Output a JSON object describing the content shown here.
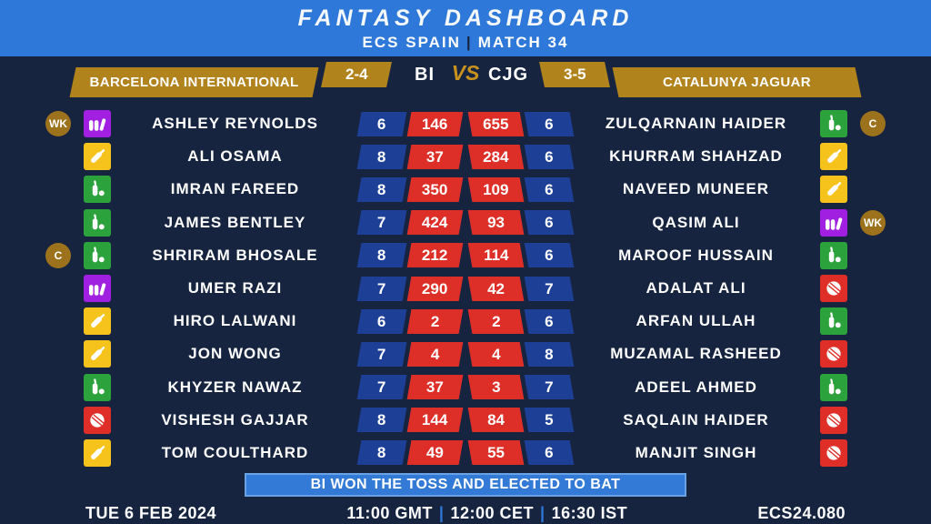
{
  "header": {
    "title": "FANTASY DASHBOARD",
    "subtitle_left": "ECS SPAIN",
    "subtitle_sep": "|",
    "subtitle_right": "MATCH 34"
  },
  "match": {
    "team_left_name": "BARCELONA INTERNATIONAL",
    "team_left_code": "BI",
    "team_left_record": "2-4",
    "vs_label": "VS",
    "team_right_name": "CATALUNYA JAGUAR",
    "team_right_code": "CJG",
    "team_right_record": "3-5"
  },
  "icons": {
    "batsman": "bat-icon",
    "all_rounder": "bat-and-ball-icon",
    "wicketkeeper": "wk-gloves-icon",
    "bowler": "cricket-ball-icon"
  },
  "players_left": [
    {
      "name": "ASHLEY REYNOLDS",
      "role": "wicketkeeper",
      "badge": "WK",
      "matches": "6",
      "points": "146"
    },
    {
      "name": "ALI OSAMA",
      "role": "batsman",
      "badge": "",
      "matches": "8",
      "points": "37"
    },
    {
      "name": "IMRAN FAREED",
      "role": "all_rounder",
      "badge": "",
      "matches": "8",
      "points": "350"
    },
    {
      "name": "JAMES BENTLEY",
      "role": "all_rounder",
      "badge": "",
      "matches": "7",
      "points": "424"
    },
    {
      "name": "SHRIRAM BHOSALE",
      "role": "all_rounder",
      "badge": "C",
      "matches": "8",
      "points": "212"
    },
    {
      "name": "UMER RAZI",
      "role": "wicketkeeper",
      "badge": "",
      "matches": "7",
      "points": "290"
    },
    {
      "name": "HIRO LALWANI",
      "role": "batsman",
      "badge": "",
      "matches": "6",
      "points": "2"
    },
    {
      "name": "JON WONG",
      "role": "batsman",
      "badge": "",
      "matches": "7",
      "points": "4"
    },
    {
      "name": "KHYZER NAWAZ",
      "role": "all_rounder",
      "badge": "",
      "matches": "7",
      "points": "37"
    },
    {
      "name": "VISHESH GAJJAR",
      "role": "bowler",
      "badge": "",
      "matches": "8",
      "points": "144"
    },
    {
      "name": "TOM COULTHARD",
      "role": "batsman",
      "badge": "",
      "matches": "8",
      "points": "49"
    }
  ],
  "players_right": [
    {
      "name": "ZULQARNAIN HAIDER",
      "role": "all_rounder",
      "badge": "C",
      "matches": "6",
      "points": "655"
    },
    {
      "name": "KHURRAM SHAHZAD",
      "role": "batsman",
      "badge": "",
      "matches": "6",
      "points": "284"
    },
    {
      "name": "NAVEED MUNEER",
      "role": "batsman",
      "badge": "",
      "matches": "6",
      "points": "109"
    },
    {
      "name": "QASIM ALI",
      "role": "wicketkeeper",
      "badge": "WK",
      "matches": "6",
      "points": "93"
    },
    {
      "name": "MAROOF HUSSAIN",
      "role": "all_rounder",
      "badge": "",
      "matches": "6",
      "points": "114"
    },
    {
      "name": "ADALAT ALI",
      "role": "bowler",
      "badge": "",
      "matches": "7",
      "points": "42"
    },
    {
      "name": "ARFAN ULLAH",
      "role": "all_rounder",
      "badge": "",
      "matches": "6",
      "points": "2"
    },
    {
      "name": "MUZAMAL RASHEED",
      "role": "bowler",
      "badge": "",
      "matches": "8",
      "points": "4"
    },
    {
      "name": "ADEEL AHMED",
      "role": "all_rounder",
      "badge": "",
      "matches": "7",
      "points": "3"
    },
    {
      "name": "SAQLAIN HAIDER",
      "role": "bowler",
      "badge": "",
      "matches": "5",
      "points": "84"
    },
    {
      "name": "MANJIT SINGH",
      "role": "bowler",
      "badge": "",
      "matches": "6",
      "points": "55"
    }
  ],
  "toss": {
    "text": "BI WON THE TOSS AND ELECTED TO BAT"
  },
  "footer": {
    "date": "TUE 6 FEB 2024",
    "time_gmt": "11:00 GMT",
    "time_cet": "12:00 CET",
    "time_ist": "16:30 IST",
    "sep": "|",
    "match_code": "ECS24.080"
  },
  "colors": {
    "header_blue": "#2e78d9",
    "background_navy": "#162440",
    "banner_gold": "#b1831c",
    "badge_circle_gold": "#9c731c",
    "stat_blue": "#1d3f96",
    "stat_red": "#dd2f27",
    "role_batsman": "#f6c31c",
    "role_all_rounder": "#2ca23c",
    "role_wicketkeeper": "#a11fe0",
    "role_bowler": "#df2e27",
    "toss_bar_blue": "#3379d6",
    "toss_bar_border": "#6aa2e6"
  }
}
